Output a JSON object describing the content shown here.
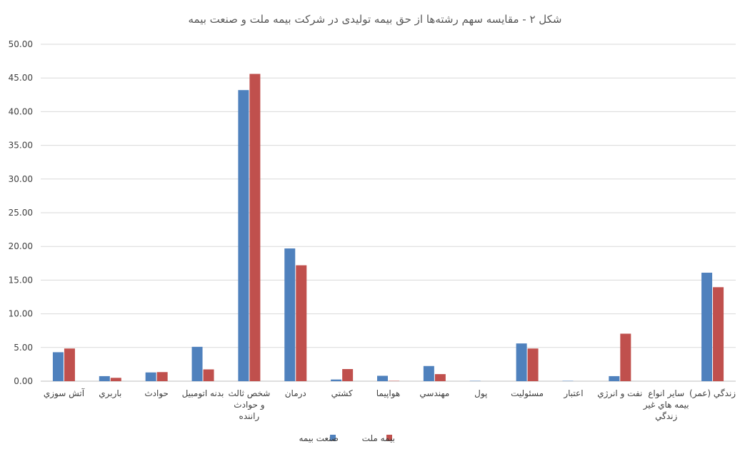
{
  "chart_data": {
    "type": "bar",
    "title": "شکل ۲  -  مقایسه سهم رشته‌ها از حق بیمه تولیدی در شرکت بیمه ملت و صنعت بیمه",
    "categories": [
      [
        "آتش سوزي"
      ],
      [
        "باربري"
      ],
      [
        "حوادث"
      ],
      [
        "بدنه اتومبيل"
      ],
      [
        "شخص ثالث",
        "و حوادث",
        "راننده"
      ],
      [
        "درمان"
      ],
      [
        "كشتي"
      ],
      [
        "هواپيما"
      ],
      [
        "مهندسي"
      ],
      [
        "پول"
      ],
      [
        "مسئوليت"
      ],
      [
        "اعتبار"
      ],
      [
        "نفت و انرژي"
      ],
      [
        "ساير انواع",
        "بيمه هاي غير",
        "زندگي"
      ],
      [
        "زندگي (عمر)"
      ]
    ],
    "series": [
      {
        "name": "صنعت بیمه",
        "color": "#4f81bd",
        "values": [
          4.3,
          0.75,
          1.3,
          5.1,
          43.2,
          19.7,
          0.25,
          0.8,
          2.25,
          0.05,
          5.6,
          0.05,
          0.75,
          0.0,
          16.1
        ]
      },
      {
        "name": "بیمه ملت",
        "color": "#c0504d",
        "values": [
          4.85,
          0.5,
          1.35,
          1.75,
          45.6,
          17.2,
          1.8,
          0.05,
          1.05,
          0.0,
          4.85,
          0.0,
          7.05,
          0.0,
          13.95
        ]
      }
    ],
    "ylim": [
      0,
      50
    ],
    "yticks": [
      "0.00",
      "5.00",
      "10.00",
      "15.00",
      "20.00",
      "25.00",
      "30.00",
      "35.00",
      "40.00",
      "45.00",
      "50.00"
    ],
    "grid": true,
    "legend_position": "bottom"
  }
}
